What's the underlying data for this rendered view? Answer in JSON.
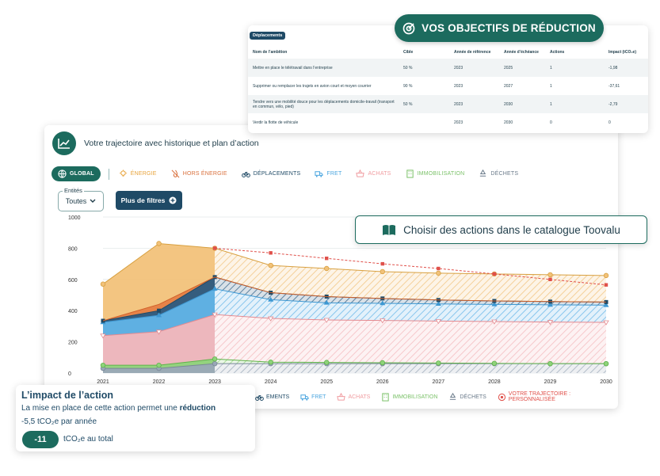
{
  "trajectory": {
    "title": "Votre trajectoire avec historique et plan d’action",
    "tabs": [
      {
        "label": "GLOBAL",
        "icon": "globe-icon",
        "color": "#ffffff"
      },
      {
        "label": "ÉNERGIE",
        "icon": "bulb-icon",
        "color": "#e8a43c"
      },
      {
        "label": "HORS ÉNERGIE",
        "icon": "flame-off-icon",
        "color": "#d9703c"
      },
      {
        "label": "DÉPLACEMENTS",
        "icon": "bike-icon",
        "color": "#1f4a66"
      },
      {
        "label": "FRET",
        "icon": "truck-icon",
        "color": "#4aa5df"
      },
      {
        "label": "ACHATS",
        "icon": "basket-icon",
        "color": "#f09ca0"
      },
      {
        "label": "IMMOBILISATION",
        "icon": "building-icon",
        "color": "#7cc26a"
      },
      {
        "label": "DÉCHETS",
        "icon": "recycle-icon",
        "color": "#6a7a8a"
      }
    ],
    "entities": {
      "label": "Entités",
      "value": "Toutes"
    },
    "filters_label": "Plus de filtres",
    "legend2": [
      {
        "label": "EMENTS",
        "icon": "bike-icon",
        "color": "#1f4a66"
      },
      {
        "label": "FRET",
        "icon": "truck-icon",
        "color": "#4aa5df"
      },
      {
        "label": "ACHATS",
        "icon": "basket-icon",
        "color": "#f09ca0"
      },
      {
        "label": "IMMOBILISATION",
        "icon": "building-icon",
        "color": "#7cc26a"
      },
      {
        "label": "DÉCHETS",
        "icon": "recycle-icon",
        "color": "#6a7a8a"
      },
      {
        "label": "VOTRE TRAJECTOIRE : PERSONNALISÉE",
        "icon": "target-icon",
        "color": "#e0504a"
      }
    ]
  },
  "objectives": {
    "pill_label": "VOS OBJECTIFS DE RÉDUCTION",
    "category_badge": "Déplacements",
    "headers": [
      "Nom de l’ambition",
      "Cible",
      "Année de référence",
      "Année d’échéance",
      "Actions",
      "Impact (tCO₂e)"
    ],
    "rows": [
      [
        "Mettre en place le télétravail dans l’entreprise",
        "50 %",
        "2023",
        "2025",
        "1",
        "-1,98"
      ],
      [
        "Supprimer ou remplacer les trajets en avion court et moyen courrier",
        "90 %",
        "2023",
        "2027",
        "1",
        "-37,61"
      ],
      [
        "Tendre vers une mobilité douce pour les déplacements domicile-travail (transport en commun, vélo, pied)",
        "50 %",
        "2023",
        "2030",
        "1",
        "-2,79"
      ],
      [
        "Verdir la flotte de véhicule",
        "",
        "2023",
        "2030",
        "0",
        "0"
      ]
    ]
  },
  "catalogue_label": "Choisir des actions dans le catalogue Toovalu",
  "impact": {
    "title": "L’impact de l’action",
    "line1_prefix": "La mise en place de cette action permet une ",
    "line1_bold": "réduction",
    "line2": "-5,5 tCO₂e par année",
    "total_value": "-11",
    "total_label": "tCO₂e au total"
  },
  "colors": {
    "accent": "#1c6b5e",
    "navy": "#1f4a66",
    "energy": "#f2c27a",
    "hors_energie": "#e57f45",
    "deplacements": "#2b5b82",
    "fret": "#62b4e8",
    "achats": "#f4b7bb",
    "immobilisation": "#8fd37a",
    "dechets": "#9aa8b8",
    "trajectory": "#e0504a"
  },
  "chart_data": {
    "type": "area",
    "title": "Votre trajectoire avec historique et plan d’action",
    "x": [
      2021,
      2022,
      2023,
      2024,
      2025,
      2026,
      2027,
      2028,
      2029,
      2030
    ],
    "yticks": [
      0,
      200,
      400,
      600,
      800,
      1000
    ],
    "ylim": [
      0,
      1000
    ],
    "history_end": 2023,
    "series": [
      {
        "name": "DÉCHETS",
        "values": [
          30,
          30,
          60,
          60,
          60,
          60,
          60,
          60,
          60,
          60
        ]
      },
      {
        "name": "IMMOBILISATION",
        "values": [
          50,
          50,
          90,
          70,
          68,
          66,
          64,
          62,
          60,
          60
        ]
      },
      {
        "name": "ACHATS",
        "values": [
          240,
          265,
          375,
          350,
          340,
          337,
          333,
          330,
          327,
          325
        ]
      },
      {
        "name": "FRET",
        "values": [
          325,
          370,
          540,
          470,
          450,
          447,
          443,
          440,
          437,
          435
        ]
      },
      {
        "name": "DÉPLACEMENTS",
        "values": [
          335,
          400,
          615,
          515,
          490,
          478,
          468,
          462,
          458,
          455
        ]
      },
      {
        "name": "HORS ÉNERGIE",
        "values": [
          335,
          440,
          615,
          515,
          490,
          478,
          468,
          462,
          458,
          455
        ]
      },
      {
        "name": "ÉNERGIE",
        "values": [
          570,
          830,
          800,
          690,
          670,
          650,
          640,
          635,
          630,
          625
        ]
      }
    ],
    "trajectory": {
      "name": "VOTRE TRAJECTOIRE : PERSONNALISÉE",
      "x": [
        2023,
        2024,
        2025,
        2026,
        2027,
        2028,
        2029,
        2030
      ],
      "values": [
        800,
        770,
        735,
        700,
        670,
        635,
        600,
        565
      ]
    }
  }
}
